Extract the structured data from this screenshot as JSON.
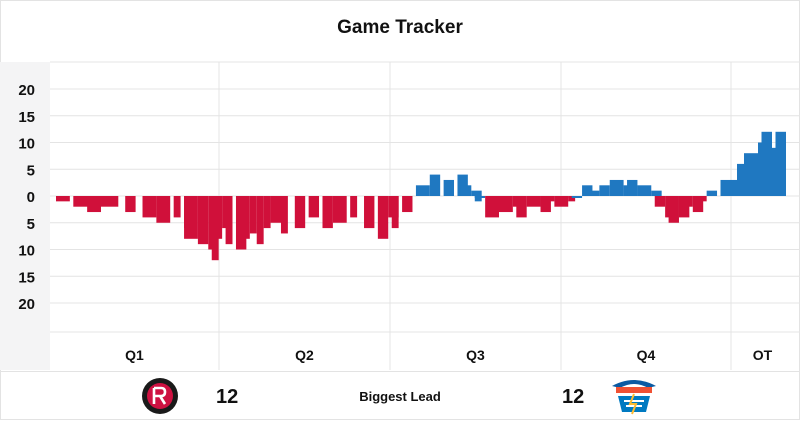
{
  "title": "Game Tracker",
  "footer": {
    "home_lead": "12",
    "label": "Biggest Lead",
    "away_lead": "12",
    "home_logo_text": "HOUSTON ROCKETS",
    "away_logo_text": "THUNDER OKC"
  },
  "colors": {
    "home": "#d0103a",
    "away": "#1f78c1",
    "grid": "#e4e4e4",
    "axis_bg": "#f4f4f5"
  },
  "chart_data": {
    "type": "bar",
    "title": "Game Tracker",
    "y_tick_labels": [
      "20",
      "15",
      "10",
      "5",
      "0",
      "5",
      "10",
      "15",
      "20"
    ],
    "y_tick_values": [
      20,
      15,
      10,
      5,
      0,
      -5,
      -10,
      -15,
      -20
    ],
    "ylim": [
      -20,
      20
    ],
    "periods": [
      "Q1",
      "Q2",
      "Q3",
      "Q4",
      "OT"
    ],
    "period_lengths": [
      12,
      12,
      12,
      12,
      5
    ],
    "grid": true,
    "legend": "none",
    "series": [
      {
        "team": "home",
        "segments": [
          [
            0,
            0,
            1,
            -1
          ],
          [
            1,
            0.5,
            1.5,
            -2
          ],
          [
            2,
            0.5,
            1,
            -3
          ],
          [
            3,
            0,
            2,
            -2
          ],
          [
            5,
            0,
            0.5,
            -3
          ],
          [
            6,
            0.5,
            0,
            -2
          ],
          [
            6,
            0.5,
            1,
            -4
          ],
          [
            7,
            0.5,
            1,
            -5
          ],
          [
            8,
            1,
            0,
            -4
          ],
          [
            9,
            0.5,
            0,
            -6
          ],
          [
            9,
            0.5,
            1,
            -8
          ],
          [
            10,
            0.5,
            0.5,
            -9
          ],
          [
            11,
            0,
            0,
            -10
          ],
          [
            11,
            0.5,
            0,
            -12
          ],
          [
            11,
            0.5,
            0.5,
            -8
          ],
          [
            12,
            0,
            0,
            -6
          ],
          [
            12,
            0.5,
            0,
            -9
          ],
          [
            13,
            0,
            0.5,
            -10
          ],
          [
            13,
            1,
            0,
            -8
          ],
          [
            14,
            0,
            0,
            -7
          ],
          [
            14,
            1,
            0,
            -9
          ],
          [
            15,
            0,
            0,
            -6
          ],
          [
            15,
            1,
            1,
            -5
          ],
          [
            16,
            0.5,
            0,
            -7
          ],
          [
            17,
            0.5,
            0.5,
            -6
          ],
          [
            18,
            0.5,
            0.5,
            -4
          ],
          [
            19,
            0.5,
            0.5,
            -6
          ],
          [
            20,
            0,
            1,
            -5
          ],
          [
            21,
            0.5,
            0,
            -4
          ],
          [
            22,
            0.5,
            0.5,
            -6
          ],
          [
            23,
            0.5,
            0.5,
            -8
          ],
          [
            24,
            0,
            0.5,
            -4
          ],
          [
            24,
            0.5,
            0,
            -6
          ],
          [
            25,
            0,
            0.5,
            -3
          ]
        ]
      },
      {
        "team": "away",
        "segments": [
          [
            26,
            0,
            1,
            2
          ],
          [
            27,
            0,
            0.5,
            4
          ],
          [
            28,
            0,
            0.5,
            3
          ],
          [
            29,
            0,
            0.5,
            4
          ],
          [
            29,
            0.5,
            0.5,
            2
          ],
          [
            30,
            0,
            0.5,
            1
          ],
          [
            30,
            0.5,
            0,
            -1
          ],
          [
            30,
            0.5,
            0.5,
            0
          ]
        ]
      },
      {
        "team": "home",
        "segments": [
          [
            31,
            0,
            1,
            -4
          ],
          [
            32,
            0,
            1,
            -3
          ],
          [
            33,
            0,
            0.5,
            -2
          ],
          [
            33,
            0.5,
            0.5,
            -4
          ],
          [
            34,
            0,
            1,
            -2
          ],
          [
            35,
            0,
            0.5,
            -3
          ],
          [
            35,
            0.5,
            0.5,
            -1
          ],
          [
            36,
            0,
            1,
            -2
          ],
          [
            36,
            1,
            0,
            0
          ],
          [
            37,
            0,
            0,
            -1
          ]
        ]
      },
      {
        "team": "away",
        "segments": [
          [
            37,
            0.5,
            0.5,
            0
          ],
          [
            38,
            0,
            0.5,
            2
          ],
          [
            38,
            0.5,
            1,
            1
          ],
          [
            39,
            0.5,
            0.5,
            2
          ],
          [
            40,
            0,
            1,
            3
          ],
          [
            41,
            0,
            0.5,
            2
          ],
          [
            41,
            0.5,
            0.5,
            3
          ],
          [
            42,
            0,
            1,
            2
          ],
          [
            43,
            0,
            0.5,
            1
          ]
        ]
      },
      {
        "team": "home",
        "segments": [
          [
            43,
            0.5,
            0.5,
            -2
          ],
          [
            44,
            0,
            0.5,
            -4
          ],
          [
            44,
            0.5,
            0.5,
            -5
          ],
          [
            45,
            0,
            0.5,
            -4
          ],
          [
            45,
            0.5,
            0.5,
            -2
          ],
          [
            46,
            0,
            0.5,
            -3
          ],
          [
            46,
            0.5,
            0.5,
            -1
          ]
        ]
      },
      {
        "team": "away",
        "segments": [
          [
            47,
            0,
            0.5,
            1
          ],
          [
            48,
            0,
            1,
            3
          ],
          [
            48,
            1,
            0,
            6
          ],
          [
            49,
            0,
            1,
            8
          ],
          [
            50,
            0,
            0.5,
            10
          ],
          [
            50,
            0.5,
            0.5,
            12
          ],
          [
            51,
            0,
            0.5,
            9
          ],
          [
            51,
            0.5,
            0.5,
            12
          ]
        ]
      }
    ]
  }
}
